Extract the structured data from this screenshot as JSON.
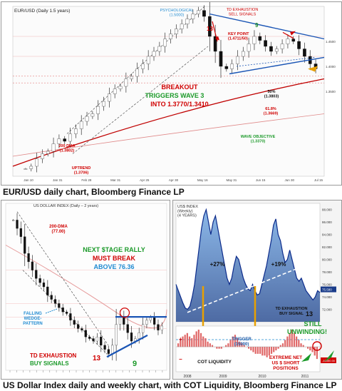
{
  "captions": {
    "top": "EUR/USD daily chart, Bloomberg Finance LP",
    "bottom": "US Dollar Index daily and weekly chart, with COT Liquidity, Bloomberg Finance LP"
  },
  "chart_data": [
    {
      "type": "candlestick",
      "title": "EUR/USD (Daily 1.5 years)",
      "x_ticks": [
        "Jan 10",
        "Jan 31",
        "Feb 28",
        "Mar 31",
        "Apr 25",
        "Apr 30",
        "May 16",
        "May 31",
        "Jun 15",
        "Jun 30",
        "Jul 15"
      ],
      "y_ticks": [
        "1.4500",
        "1.4000",
        "1.3500"
      ],
      "ylim": [
        1.18,
        1.52
      ],
      "close": [
        1.195,
        1.2,
        1.215,
        1.225,
        1.23,
        1.245,
        1.255,
        1.25,
        1.265,
        1.275,
        1.29,
        1.3,
        1.305,
        1.32,
        1.33,
        1.345,
        1.355,
        1.36,
        1.375,
        1.38,
        1.395,
        1.405,
        1.42,
        1.43,
        1.44,
        1.455,
        1.465,
        1.475,
        1.485,
        1.495,
        1.505,
        1.512,
        1.5,
        1.46,
        1.43,
        1.4,
        1.395,
        1.405,
        1.42,
        1.43,
        1.445,
        1.46,
        1.452,
        1.44,
        1.43,
        1.435,
        1.445,
        1.455,
        1.45,
        1.435,
        1.42,
        1.405,
        1.395
      ],
      "annotations": {
        "psych": "PSYCHOLOGICAL\n(1.5000)",
        "td_exhaust": "TD EXHAUSTION\nSELL SIGNALS",
        "count_13": "13",
        "count_9": "9",
        "keypoint": "KEY POINT\n(1.4711/50)",
        "breakout1": "BREAKOUT",
        "breakout2": "TRIGGERS WAVE 3",
        "breakout3": "INTO 1.3770/1.3410",
        "fib50": "50%\n(1.3803)",
        "fib618": "61.8%\n(1.3669)",
        "dma": "200 DMA\n(1.3802)",
        "uptrend": "UPTREND\n(1.3706)",
        "wave_obj": "WAVE OBJECTIVE\n(1.3370)"
      }
    },
    {
      "type": "candlestick",
      "title": "US DOLLAR INDEX (Daily – 2 years)",
      "close": [
        88,
        87,
        86,
        84,
        83,
        82,
        81,
        80.5,
        80,
        79,
        78.5,
        78,
        77.5,
        77,
        76.8,
        76,
        75.5,
        75,
        74.8,
        74,
        73.8,
        73.5,
        74,
        73,
        72.5,
        72,
        73,
        75.5,
        76.4,
        75.5,
        74.5,
        73.5,
        73.8,
        74.5,
        75.5,
        76,
        76.3,
        75.5,
        74.8,
        75.3
      ],
      "annotations": {
        "dma": "200-DMA\n(77.00)",
        "nsr1": "NEXT $TAGE RALLY",
        "nsr2": "MUST BREAK",
        "nsr3": "ABOVE 76.36",
        "wedge": "FALLING\nWEDGE-\nPATTERN",
        "td1": "TD EXHAUSTION",
        "td2": "BUY SIGNALS",
        "count_13": "13",
        "count_9": "9"
      }
    },
    {
      "type": "line",
      "title": "US$ INDEX\n(Weekly)\n(4 YEARS)",
      "x_ticks": [
        "2008",
        "2009",
        "2010",
        "2011"
      ],
      "y_ticks": [
        "88.000",
        "86.000",
        "84.000",
        "82.000",
        "80.000",
        "78.000",
        "76.000",
        "74.000",
        "72.000"
      ],
      "ylim": [
        70,
        89
      ],
      "values": [
        76,
        75,
        74,
        73,
        72.2,
        72,
        72.5,
        74,
        76,
        79,
        82,
        85,
        87,
        88,
        86,
        84,
        86,
        87,
        85,
        83,
        81,
        79,
        77,
        76,
        77,
        79,
        80.5,
        80,
        78.5,
        77,
        76,
        75.3,
        75,
        76,
        75,
        74.3,
        74.5,
        76,
        77.5,
        79,
        81,
        83,
        85.5,
        86.5,
        84,
        83,
        81,
        79.5,
        80,
        81.5,
        80,
        78.5,
        77,
        76.5,
        77,
        76,
        75,
        74.5,
        74,
        73.5,
        74,
        75,
        74.7
      ],
      "annotations": {
        "pct27": "+27%",
        "pct19": "+19%",
        "td1": "TD EXHAUSTION",
        "td2": "BUY SIGNAL",
        "count_13": "13",
        "still1": "STILL",
        "still2": "UNWINDING!",
        "trigger": "TRIGGER\n(15000)",
        "cot": "COT LIQUIDITY",
        "extreme": "EXTREME NET\nUS $ SHORT\nPOSITIONS",
        "plus": "+",
        "minus": "−"
      },
      "cot": [
        2,
        4,
        6,
        7,
        8,
        6,
        5,
        7,
        9,
        10,
        8,
        6,
        5,
        3,
        2,
        1,
        0,
        -1,
        -1,
        -1,
        0,
        1,
        2,
        4,
        6,
        7,
        5,
        3,
        2,
        1,
        0,
        -1,
        -2,
        -3,
        -4,
        -4,
        -4,
        -5,
        -5,
        -6,
        -5,
        -4,
        -3,
        -2,
        -1,
        1,
        2,
        4,
        6,
        8,
        10,
        8,
        6,
        4,
        2,
        1,
        0,
        -1,
        -2,
        -3,
        -5,
        -7
      ]
    }
  ]
}
